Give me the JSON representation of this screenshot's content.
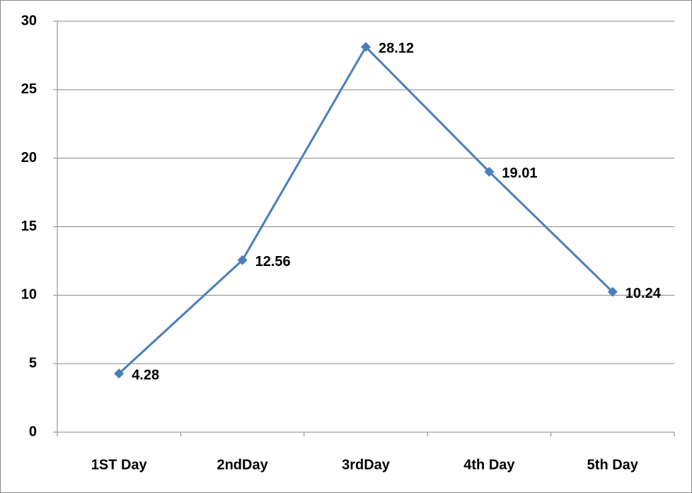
{
  "chart_data": {
    "type": "line",
    "categories": [
      "1ST Day",
      "2ndDay",
      "3rdDay",
      "4th Day",
      "5th Day"
    ],
    "series": [
      {
        "color": "#4a7ebb",
        "values": [
          4.28,
          12.56,
          28.12,
          19.01,
          10.24
        ]
      }
    ],
    "ylim": [
      0,
      30
    ],
    "yticks": [
      0,
      5,
      10,
      15,
      20,
      25,
      30
    ],
    "grid": true
  }
}
